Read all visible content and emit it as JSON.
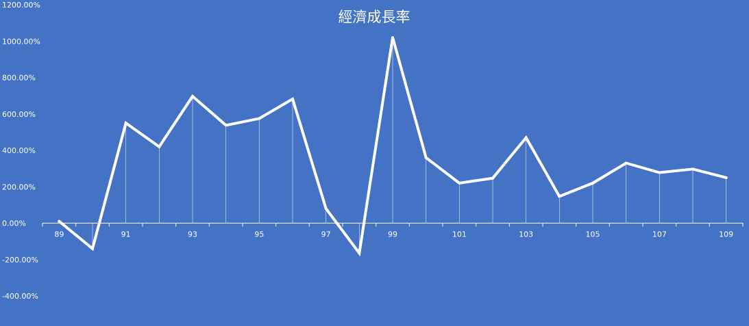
{
  "chart_data": {
    "type": "line",
    "title": "經濟成長率",
    "xlabel": "",
    "ylabel": "",
    "x": [
      89,
      90,
      91,
      92,
      93,
      94,
      95,
      96,
      97,
      98,
      99,
      100,
      101,
      102,
      103,
      104,
      105,
      106,
      107,
      108,
      109
    ],
    "x_tick_labels": [
      "89",
      "91",
      "93",
      "95",
      "97",
      "99",
      "101",
      "103",
      "105",
      "107",
      "109"
    ],
    "y_tick_labels": [
      "1200.00%",
      "1000.00%",
      "800.00%",
      "600.00%",
      "400.00%",
      "200.00%",
      "0.00%",
      "-200.00%",
      "-400.00%"
    ],
    "ylim": [
      -400,
      1200
    ],
    "y_unit": "%",
    "series": [
      {
        "values": [
          10,
          -140,
          550,
          420,
          697,
          538,
          575,
          682,
          80,
          -165,
          1020,
          360,
          220,
          247,
          470,
          147,
          220,
          330,
          278,
          297,
          250
        ]
      }
    ],
    "grid": false,
    "drop_lines": true,
    "legend": "none",
    "colors": {
      "background": "#4472c4",
      "line": "#ffffff",
      "text": "#ffffff"
    }
  }
}
